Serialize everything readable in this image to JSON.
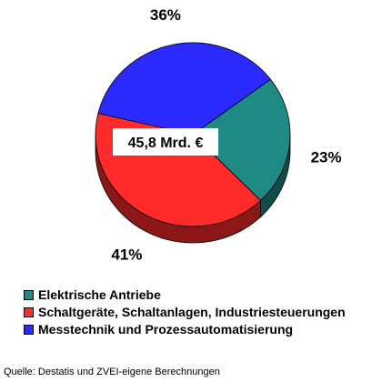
{
  "chart_data": {
    "type": "pie",
    "center_label": "45,8 Mrd. €",
    "slices": [
      {
        "label": "Elektrische Antriebe",
        "value": 23,
        "value_label": "23%",
        "color": "#1f8a84"
      },
      {
        "label": "Schaltgeräte, Schaltanlagen, Industriesteuerungen",
        "value": 41,
        "value_label": "41%",
        "color": "#ff2a2a"
      },
      {
        "label": "Messtechnik und Prozessautomatisierung",
        "value": 36,
        "value_label": "36%",
        "color": "#2a2aff"
      }
    ],
    "legend_position": "bottom-left",
    "three_d": true
  },
  "source": "Quelle: Destatis und ZVEI-eigene Berechnungen"
}
